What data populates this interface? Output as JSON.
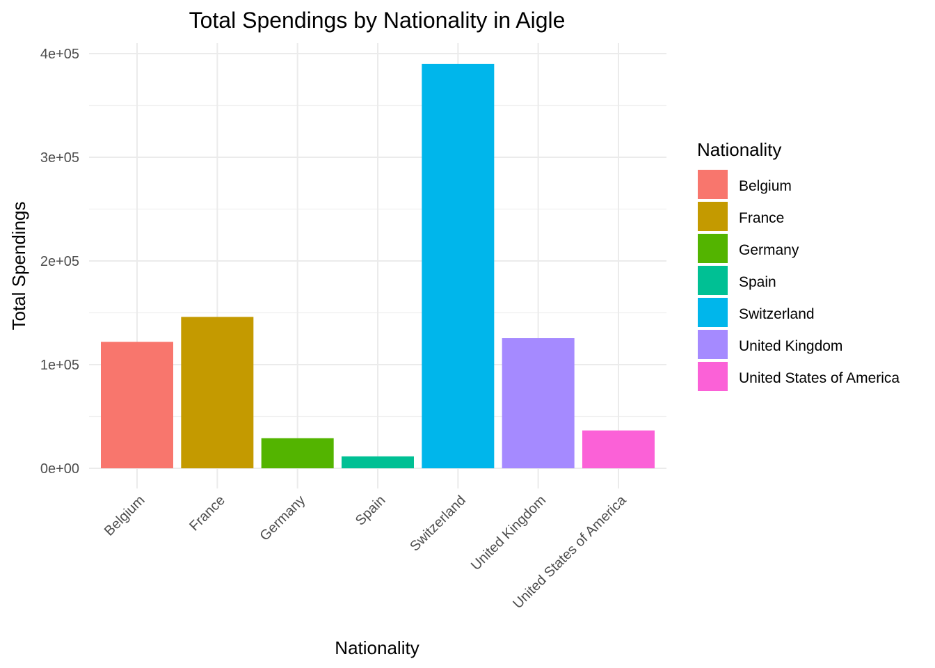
{
  "chart_data": {
    "type": "bar",
    "title": "Total Spendings by Nationality in Aigle",
    "xlabel": "Nationality",
    "ylabel": "Total Spendings",
    "categories": [
      "Belgium",
      "France",
      "Germany",
      "Spain",
      "Switzerland",
      "United Kingdom",
      "United States of America"
    ],
    "values": [
      122000,
      146000,
      29000,
      11500,
      390000,
      125500,
      36500
    ],
    "colors": [
      "#F8766D",
      "#C49A00",
      "#53B400",
      "#00C094",
      "#00B6EB",
      "#A58AFF",
      "#FB61D7"
    ],
    "ylim": [
      0,
      400000
    ],
    "y_ticks": [
      0,
      100000,
      200000,
      300000,
      400000
    ],
    "y_tick_labels": [
      "0e+00",
      "1e+05",
      "2e+05",
      "3e+05",
      "4e+05"
    ],
    "grid": true,
    "legend": {
      "title": "Nationality",
      "position": "right",
      "entries": [
        "Belgium",
        "France",
        "Germany",
        "Spain",
        "Switzerland",
        "United Kingdom",
        "United States of America"
      ]
    }
  }
}
